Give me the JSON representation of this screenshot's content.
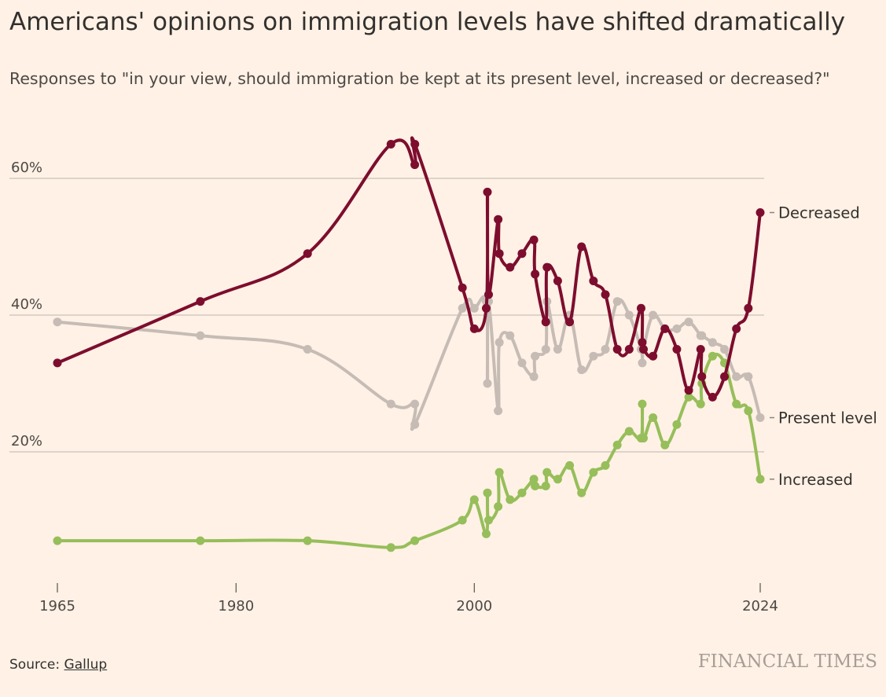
{
  "title": "Americans' opinions on immigration levels have shifted dramatically",
  "subtitle": "Responses to \"in your view, should immigration be kept at its present level, increased or decreased?\"",
  "source_label": "Source:",
  "source_name": "Gallup",
  "brand": "FINANCIAL TIMES",
  "colors": {
    "background": "#fff1e5",
    "decreased": "#7d0d2e",
    "present": "#c6bcb5",
    "increased": "#96be5a",
    "grid": "#c9c1ba"
  },
  "chart_data": {
    "type": "line",
    "x_ticks": [
      1965,
      1980,
      2000,
      2024
    ],
    "y_ticks": [
      20,
      40,
      60
    ],
    "y_tick_labels": [
      "20%",
      "40%",
      "60%"
    ],
    "xlim": [
      1965,
      2024
    ],
    "ylim": [
      0,
      70
    ],
    "series": [
      {
        "name": "Present level",
        "key": "present",
        "x": [
          1965,
          1977,
          1986,
          1993,
          1995,
          1995.01,
          1999,
          2000,
          2001,
          2001.1,
          2001.2,
          2002,
          2002.1,
          2003,
          2004,
          2005,
          2005.1,
          2006,
          2006.1,
          2007,
          2008,
          2009,
          2010,
          2011,
          2012,
          2013,
          2014,
          2014.1,
          2014.2,
          2015,
          2016,
          2017,
          2018,
          2019,
          2019.1,
          2020,
          2021,
          2022,
          2023,
          2024
        ],
        "values": [
          39,
          37,
          35,
          27,
          27,
          24,
          41,
          41,
          42,
          30,
          42,
          26,
          36,
          37,
          33,
          31,
          34,
          35,
          42,
          35,
          40,
          32,
          34,
          35,
          42,
          40,
          35,
          33,
          35,
          40,
          38,
          38,
          39,
          37,
          37,
          36,
          35,
          31,
          31,
          25
        ]
      },
      {
        "name": "Decreased",
        "key": "decreased",
        "x": [
          1965,
          1977,
          1986,
          1993,
          1995,
          1995.01,
          1999,
          2000,
          2001,
          2001.1,
          2001.2,
          2002,
          2002.1,
          2003,
          2004,
          2005,
          2005.1,
          2006,
          2006.1,
          2007,
          2008,
          2009,
          2010,
          2011,
          2012,
          2013,
          2014,
          2014.1,
          2014.2,
          2015,
          2016,
          2017,
          2018,
          2019,
          2019.1,
          2020,
          2021,
          2022,
          2023,
          2024
        ],
        "values": [
          33,
          42,
          49,
          65,
          62,
          65,
          44,
          38,
          41,
          58,
          43,
          54,
          49,
          47,
          49,
          51,
          46,
          39,
          47,
          45,
          39,
          50,
          45,
          43,
          35,
          35,
          41,
          36,
          35,
          34,
          38,
          35,
          29,
          35,
          31,
          28,
          31,
          38,
          41,
          55
        ]
      },
      {
        "name": "Increased",
        "key": "increased",
        "x": [
          1965,
          1977,
          1986,
          1993,
          1995,
          1999,
          2000,
          2001,
          2001.1,
          2001.2,
          2002,
          2002.1,
          2003,
          2004,
          2005,
          2005.1,
          2006,
          2006.1,
          2007,
          2008,
          2009,
          2010,
          2011,
          2012,
          2013,
          2014,
          2014.1,
          2014.2,
          2015,
          2016,
          2017,
          2018,
          2019,
          2019.1,
          2020,
          2021,
          2022,
          2023,
          2024
        ],
        "values": [
          7,
          7,
          7,
          6,
          7,
          10,
          13,
          8,
          14,
          10,
          12,
          17,
          13,
          14,
          16,
          15,
          15,
          17,
          16,
          18,
          14,
          17,
          18,
          21,
          23,
          22,
          27,
          22,
          25,
          21,
          24,
          28,
          27,
          30,
          34,
          33,
          27,
          26,
          16
        ]
      }
    ]
  }
}
